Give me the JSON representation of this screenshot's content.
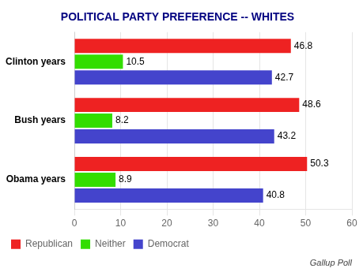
{
  "chart_data": {
    "type": "bar",
    "title": "POLITICAL PARTY PREFERENCE -- WHITES",
    "orientation": "horizontal",
    "categories": [
      "Clinton years",
      "Bush years",
      "Obama years"
    ],
    "series": [
      {
        "name": "Republican",
        "color": "#ee2222",
        "values": [
          46.8,
          48.6,
          50.3
        ]
      },
      {
        "name": "Neither",
        "color": "#33dd00",
        "values": [
          10.5,
          8.2,
          8.9
        ]
      },
      {
        "name": "Democrat",
        "color": "#4444cc",
        "values": [
          42.7,
          43.2,
          40.8
        ]
      }
    ],
    "xlim": [
      0,
      60
    ],
    "xticks": [
      0,
      10,
      20,
      30,
      40,
      50,
      60
    ],
    "grid": "x",
    "legend": "bottom",
    "data_labels": true,
    "annotations": [
      "Gallup Poll"
    ]
  }
}
